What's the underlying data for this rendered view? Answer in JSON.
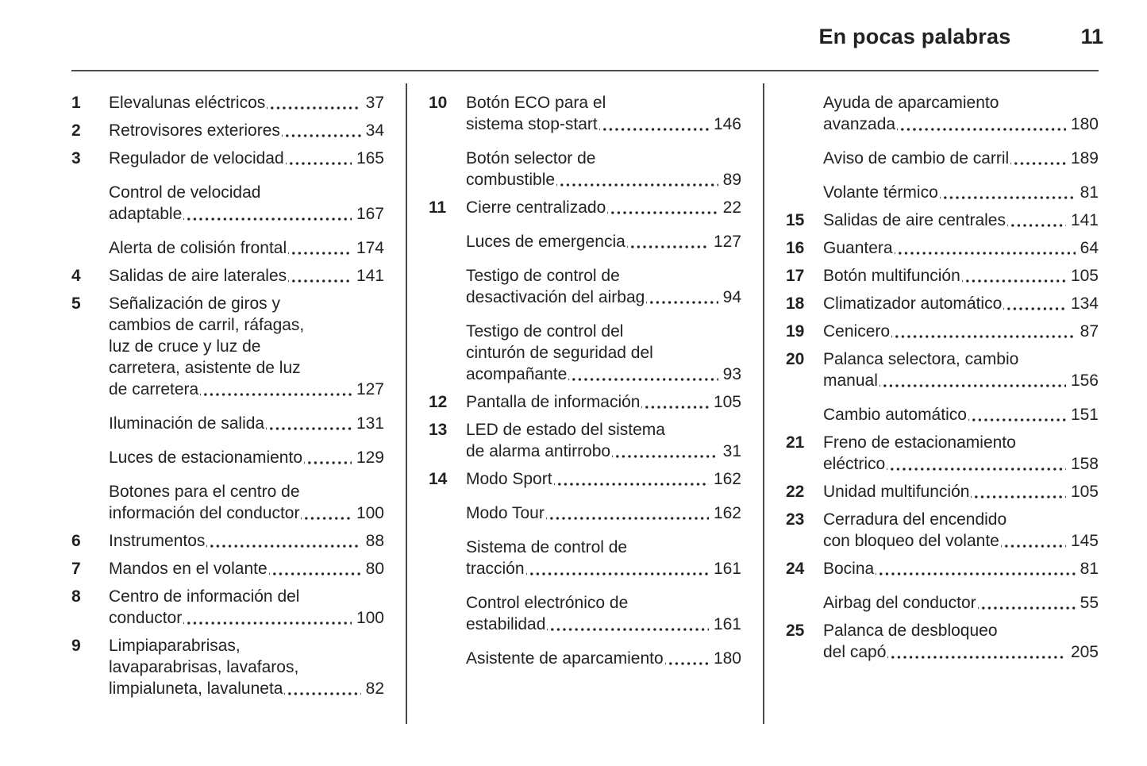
{
  "header": {
    "title": "En pocas palabras",
    "page_number": "11"
  },
  "colors": {
    "text": "#222222",
    "rule": "#4b4b4b",
    "background": "#ffffff"
  },
  "columns": [
    {
      "entries": [
        {
          "num": "1",
          "lines": [
            "Elevalunas eléctricos"
          ],
          "page": "37"
        },
        {
          "num": "2",
          "lines": [
            "Retrovisores exteriores"
          ],
          "page": "34"
        },
        {
          "num": "3",
          "lines": [
            "Regulador de velocidad"
          ],
          "page": "165"
        },
        {
          "num": "",
          "lines": [
            "Control de velocidad",
            "adaptable"
          ],
          "page": "167"
        },
        {
          "num": "",
          "lines": [
            "Alerta de colisión frontal"
          ],
          "page": "174"
        },
        {
          "num": "4",
          "lines": [
            "Salidas de aire laterales"
          ],
          "page": "141"
        },
        {
          "num": "5",
          "lines": [
            "Señalización de giros y",
            "cambios de carril, ráfagas,",
            "luz de cruce y luz de",
            "carretera, asistente de luz",
            "de carretera"
          ],
          "page": "127"
        },
        {
          "num": "",
          "lines": [
            "Iluminación de salida"
          ],
          "page": "131"
        },
        {
          "num": "",
          "lines": [
            "Luces de estacionamiento"
          ],
          "page": "129"
        },
        {
          "num": "",
          "lines": [
            "Botones para el centro de",
            "información del conductor"
          ],
          "page": "100"
        },
        {
          "num": "6",
          "lines": [
            "Instrumentos"
          ],
          "page": "88"
        },
        {
          "num": "7",
          "lines": [
            "Mandos en el volante"
          ],
          "page": "80"
        },
        {
          "num": "8",
          "lines": [
            "Centro de información del",
            "conductor"
          ],
          "page": "100"
        },
        {
          "num": "9",
          "lines": [
            "Limpiaparabrisas,",
            "lavaparabrisas, lavafaros,",
            "limpialuneta, lavaluneta"
          ],
          "page": "82"
        }
      ]
    },
    {
      "entries": [
        {
          "num": "10",
          "lines": [
            "Botón ECO para el",
            "sistema stop-start"
          ],
          "page": "146"
        },
        {
          "num": "",
          "lines": [
            "Botón selector de",
            "combustible"
          ],
          "page": "89"
        },
        {
          "num": "11",
          "lines": [
            "Cierre centralizado"
          ],
          "page": "22"
        },
        {
          "num": "",
          "lines": [
            "Luces de emergencia"
          ],
          "page": "127"
        },
        {
          "num": "",
          "lines": [
            "Testigo de control de",
            "desactivación del airbag"
          ],
          "page": "94"
        },
        {
          "num": "",
          "lines": [
            "Testigo de control del",
            "cinturón de seguridad del",
            "acompañante"
          ],
          "page": "93"
        },
        {
          "num": "12",
          "lines": [
            "Pantalla de información"
          ],
          "page": "105"
        },
        {
          "num": "13",
          "lines": [
            "LED de estado del sistema",
            "de alarma antirrobo"
          ],
          "page": "31"
        },
        {
          "num": "14",
          "lines": [
            "Modo Sport"
          ],
          "page": "162"
        },
        {
          "num": "",
          "lines": [
            "Modo Tour"
          ],
          "page": "162"
        },
        {
          "num": "",
          "lines": [
            "Sistema de control de",
            "tracción"
          ],
          "page": "161"
        },
        {
          "num": "",
          "lines": [
            "Control electrónico de",
            "estabilidad"
          ],
          "page": "161"
        },
        {
          "num": "",
          "lines": [
            "Asistente de aparcamiento"
          ],
          "page": "180"
        }
      ]
    },
    {
      "entries": [
        {
          "num": "",
          "lines": [
            "Ayuda de aparcamiento",
            "avanzada"
          ],
          "page": "180"
        },
        {
          "num": "",
          "lines": [
            "Aviso de cambio de carril"
          ],
          "page": "189"
        },
        {
          "num": "",
          "lines": [
            "Volante térmico"
          ],
          "page": "81"
        },
        {
          "num": "15",
          "lines": [
            "Salidas de aire centrales"
          ],
          "page": "141"
        },
        {
          "num": "16",
          "lines": [
            "Guantera"
          ],
          "page": "64"
        },
        {
          "num": "17",
          "lines": [
            "Botón multifunción"
          ],
          "page": "105"
        },
        {
          "num": "18",
          "lines": [
            "Climatizador automático"
          ],
          "page": "134"
        },
        {
          "num": "19",
          "lines": [
            "Cenicero"
          ],
          "page": "87"
        },
        {
          "num": "20",
          "lines": [
            "Palanca selectora, cambio",
            "manual"
          ],
          "page": "156"
        },
        {
          "num": "",
          "lines": [
            "Cambio automático"
          ],
          "page": "151"
        },
        {
          "num": "21",
          "lines": [
            "Freno de estacionamiento",
            "eléctrico"
          ],
          "page": "158"
        },
        {
          "num": "22",
          "lines": [
            "Unidad multifunción"
          ],
          "page": "105"
        },
        {
          "num": "23",
          "lines": [
            "Cerradura del encendido",
            "con bloqueo del volante"
          ],
          "page": "145"
        },
        {
          "num": "24",
          "lines": [
            "Bocina"
          ],
          "page": "81"
        },
        {
          "num": "",
          "lines": [
            "Airbag del conductor"
          ],
          "page": "55"
        },
        {
          "num": "25",
          "lines": [
            "Palanca de desbloqueo",
            "del capó"
          ],
          "page": "205"
        }
      ]
    }
  ]
}
